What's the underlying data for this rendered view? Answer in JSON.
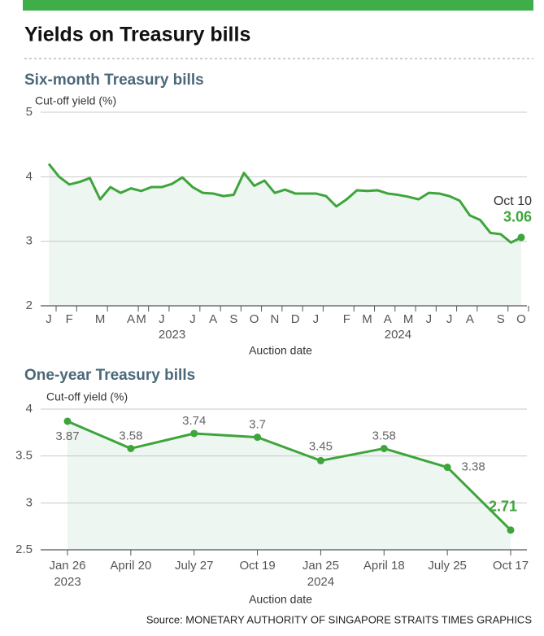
{
  "title": "Yields on Treasury bills",
  "source": "Source: MONETARY AUTHORITY OF SINGAPORE   STRAITS TIMES GRAPHICS",
  "chart_data": [
    {
      "type": "line",
      "title": "Six-month Treasury bills",
      "y_label": "Cut-off yield (%)",
      "x_label": "Auction date",
      "categories": [
        "J",
        null,
        "F",
        null,
        null,
        "M",
        null,
        null,
        "A",
        "M",
        null,
        "J",
        null,
        null,
        "J",
        null,
        "A",
        null,
        "S",
        null,
        "O",
        null,
        "N",
        null,
        "D",
        null,
        "J",
        null,
        null,
        "F",
        null,
        "M",
        null,
        "A",
        null,
        "M",
        null,
        "J",
        null,
        "J",
        null,
        "A",
        null,
        null,
        "S",
        null,
        "O"
      ],
      "year_labels": [
        null,
        null,
        null,
        null,
        null,
        null,
        null,
        null,
        null,
        null,
        null,
        null,
        "2023",
        null,
        null,
        null,
        null,
        null,
        null,
        null,
        null,
        null,
        null,
        null,
        null,
        null,
        null,
        null,
        null,
        null,
        null,
        null,
        null,
        null,
        "2024",
        null,
        null,
        null,
        null,
        null,
        null,
        null,
        null,
        null,
        null,
        null,
        null
      ],
      "series": [
        {
          "name": "Six-month",
          "color": "#3da53b",
          "values": [
            4.2,
            4.0,
            3.88,
            3.92,
            3.98,
            3.65,
            3.84,
            3.75,
            3.82,
            3.78,
            3.84,
            3.84,
            3.89,
            3.99,
            3.84,
            3.75,
            3.74,
            3.7,
            3.72,
            4.06,
            3.86,
            3.94,
            3.75,
            3.8,
            3.74,
            3.74,
            3.74,
            3.7,
            3.54,
            3.65,
            3.79,
            3.78,
            3.79,
            3.74,
            3.72,
            3.69,
            3.65,
            3.75,
            3.74,
            3.7,
            3.63,
            3.4,
            3.33,
            3.13,
            3.11,
            2.98,
            3.06
          ]
        }
      ],
      "area_color": "#eef6f2",
      "markers": "last",
      "show_labels": "last",
      "annotation": "Oct 10",
      "ylim": [
        2,
        5
      ],
      "yticks": [
        2,
        3,
        4,
        5
      ],
      "grid": true
    },
    {
      "type": "line",
      "title": "One-year Treasury bills",
      "y_label": "Cut-off yield (%)",
      "x_label": "Auction date",
      "categories": [
        "Jan 26",
        "April 20",
        "July 27",
        "Oct 19",
        "Jan 25",
        "April 18",
        "July 25",
        "Oct 17"
      ],
      "year_labels": [
        "2023",
        null,
        null,
        null,
        "2024",
        null,
        null,
        null
      ],
      "series": [
        {
          "name": "One-year",
          "color": "#3da53b",
          "values": [
            3.87,
            3.58,
            3.74,
            3.7,
            3.45,
            3.58,
            3.38,
            2.71
          ]
        }
      ],
      "area_color": "#eef6f2",
      "markers": "all",
      "show_labels": "all",
      "ylim": [
        2.5,
        4
      ],
      "yticks": [
        2.5,
        3,
        3.5,
        4
      ],
      "grid": true
    }
  ]
}
